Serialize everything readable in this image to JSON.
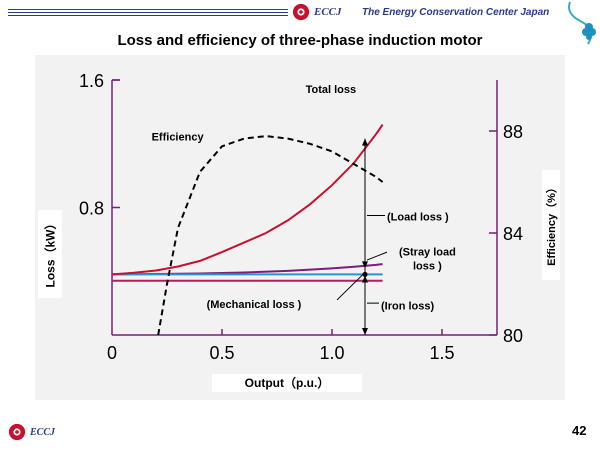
{
  "header": {
    "logo_text": "ECCJ",
    "org_name": "The Energy Conservation Center Japan"
  },
  "slide": {
    "title": "Loss and efficiency of three-phase induction motor",
    "page_number": "42"
  },
  "footer": {
    "logo_text": "ECCJ"
  },
  "colors": {
    "total_loss": "#c8102e",
    "efficiency": "#000000",
    "stray": "#7b1e7a",
    "iron": "#2196d8",
    "mechanical": "#c2185b",
    "axis": "#7b1e7a"
  },
  "chart_data": {
    "type": "line",
    "xlabel": "Output（p.u.）",
    "ylabel_left": "Loss（kW）",
    "ylabel_right": "Efficiency（%）",
    "xlim": [
      0,
      1.75
    ],
    "ylim_left": [
      0,
      1.6
    ],
    "ylim_right": [
      80,
      90
    ],
    "x_ticks": [
      "0",
      "0.5",
      "1.0",
      "1.5"
    ],
    "y_ticks_left": [
      "0.8",
      "1.6"
    ],
    "y_ticks_right": [
      "80",
      "84",
      "88"
    ],
    "series": [
      {
        "name": "Total loss",
        "axis": "left",
        "style": "solid",
        "x": [
          0,
          0.1,
          0.2,
          0.3,
          0.4,
          0.5,
          0.6,
          0.7,
          0.8,
          0.9,
          1.0,
          1.1,
          1.2,
          1.23
        ],
        "y": [
          0.38,
          0.39,
          0.405,
          0.43,
          0.465,
          0.52,
          0.58,
          0.64,
          0.72,
          0.82,
          0.94,
          1.08,
          1.26,
          1.32
        ]
      },
      {
        "name": "Efficiency",
        "axis": "right",
        "style": "dashed",
        "x": [
          0.21,
          0.25,
          0.3,
          0.4,
          0.5,
          0.6,
          0.7,
          0.8,
          0.9,
          1.0,
          1.1,
          1.2,
          1.23
        ],
        "y": [
          80.0,
          82.0,
          84.2,
          86.4,
          87.4,
          87.7,
          87.8,
          87.7,
          87.5,
          87.2,
          86.7,
          86.2,
          86.0
        ]
      },
      {
        "name": "Stray load loss",
        "axis": "left",
        "style": "solid",
        "x": [
          0,
          0.2,
          0.4,
          0.6,
          0.8,
          1.0,
          1.1,
          1.2,
          1.23
        ],
        "y": [
          0.38,
          0.383,
          0.386,
          0.392,
          0.402,
          0.418,
          0.428,
          0.44,
          0.445
        ]
      },
      {
        "name": "Iron loss",
        "axis": "left",
        "style": "solid",
        "x": [
          0,
          1.23
        ],
        "y": [
          0.38,
          0.38
        ]
      },
      {
        "name": "Mechanical loss",
        "axis": "left",
        "style": "solid",
        "x": [
          0,
          1.23
        ],
        "y": [
          0.34,
          0.34
        ]
      }
    ],
    "annotations": {
      "total_loss": "Total loss",
      "efficiency": "Efficiency",
      "load_loss": "(Load loss )",
      "stray_load_loss_1": "(Stray load",
      "stray_load_loss_2": "loss )",
      "mechanical_loss": "(Mechanical loss )",
      "iron_loss": "(Iron loss)"
    }
  }
}
